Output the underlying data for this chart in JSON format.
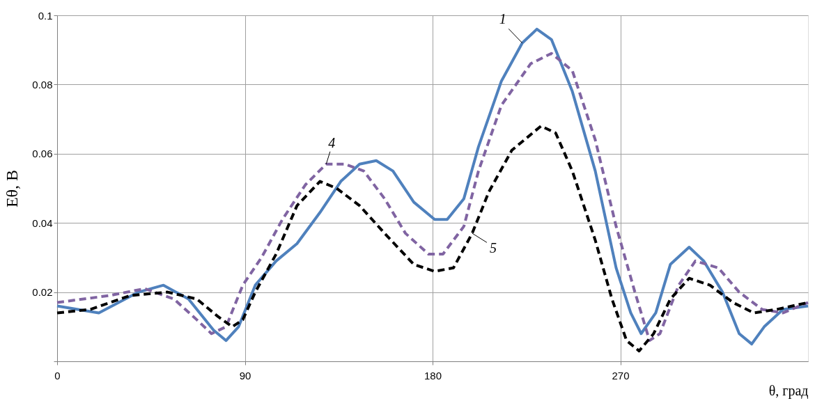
{
  "chart_data": {
    "type": "line",
    "xlabel": "θ, град",
    "ylabel": "Eθ, В",
    "xlim": [
      0,
      360
    ],
    "xticks": [
      0,
      90,
      180,
      270
    ],
    "ylim": [
      0,
      0.1
    ],
    "yticks": [
      {
        "value": 0,
        "label": null
      },
      0.02,
      0.04,
      0.06,
      0.08,
      0.1
    ],
    "grid": true,
    "marker": "none",
    "series": [
      {
        "name": "1",
        "color": "#4f81bd",
        "line_style": "solid",
        "x": [
          0,
          20,
          39,
          51,
          63,
          75,
          81,
          87,
          95,
          105,
          115,
          126,
          136,
          145,
          153,
          161,
          171,
          181,
          187,
          195,
          202,
          213,
          223,
          230,
          237,
          247,
          258,
          268,
          275,
          280,
          287,
          294,
          303,
          310,
          319,
          327,
          333,
          339,
          348,
          360
        ],
        "values": [
          0.016,
          0.014,
          0.02,
          0.022,
          0.018,
          0.009,
          0.006,
          0.01,
          0.022,
          0.029,
          0.034,
          0.043,
          0.052,
          0.057,
          0.058,
          0.055,
          0.046,
          0.041,
          0.041,
          0.047,
          0.062,
          0.081,
          0.092,
          0.096,
          0.093,
          0.078,
          0.055,
          0.027,
          0.014,
          0.008,
          0.014,
          0.028,
          0.033,
          0.029,
          0.02,
          0.008,
          0.005,
          0.01,
          0.015,
          0.016
        ]
      },
      {
        "name": "4",
        "color": "#8064a2",
        "line_style": "dashed",
        "x": [
          0,
          25,
          42,
          56,
          67,
          74,
          81,
          89,
          98,
          108,
          119,
          129,
          138,
          147,
          157,
          167,
          178,
          185,
          195,
          202,
          213,
          227,
          237,
          247,
          258,
          268,
          277,
          284,
          289,
          298,
          306,
          317,
          327,
          338,
          348,
          360
        ],
        "values": [
          0.017,
          0.019,
          0.021,
          0.018,
          0.012,
          0.008,
          0.01,
          0.022,
          0.03,
          0.041,
          0.051,
          0.057,
          0.057,
          0.055,
          0.047,
          0.037,
          0.031,
          0.031,
          0.039,
          0.055,
          0.074,
          0.086,
          0.089,
          0.084,
          0.064,
          0.039,
          0.02,
          0.006,
          0.008,
          0.022,
          0.029,
          0.027,
          0.02,
          0.015,
          0.014,
          0.017
        ]
      },
      {
        "name": "5",
        "color": "#000000",
        "line_style": "dashed",
        "x": [
          0,
          16,
          35,
          53,
          67,
          77,
          84,
          89,
          95,
          105,
          115,
          126,
          134,
          145,
          157,
          171,
          181,
          190,
          199,
          207,
          218,
          232,
          239,
          247,
          258,
          266,
          273,
          279,
          286,
          294,
          303,
          313,
          324,
          334,
          345,
          360
        ],
        "values": [
          0.014,
          0.015,
          0.019,
          0.02,
          0.018,
          0.013,
          0.01,
          0.012,
          0.02,
          0.031,
          0.045,
          0.052,
          0.05,
          0.045,
          0.037,
          0.028,
          0.026,
          0.027,
          0.037,
          0.049,
          0.061,
          0.068,
          0.066,
          0.055,
          0.035,
          0.018,
          0.006,
          0.003,
          0.008,
          0.018,
          0.024,
          0.022,
          0.017,
          0.014,
          0.015,
          0.017
        ]
      }
    ]
  }
}
